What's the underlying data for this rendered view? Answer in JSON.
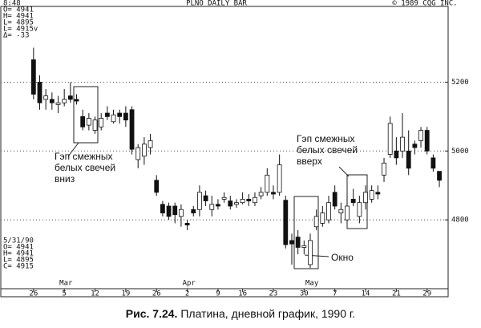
{
  "chart_data": {
    "type": "candlestick",
    "title": "PLNO DAILY BAR",
    "copyright": "© 1989 CQG INC.",
    "header_lines": [
      "8:48",
      "O= 4941",
      "H= 4941",
      "L= 4895",
      "L= 4915v",
      "Δ= -33"
    ],
    "footer_lines": [
      "5/31/90",
      "O= 4941",
      "H= 4941",
      "L= 4895",
      "C= 4915"
    ],
    "categories": [
      "26",
      null,
      null,
      null,
      null,
      "5",
      null,
      null,
      null,
      null,
      "12",
      null,
      null,
      null,
      null,
      "19",
      null,
      null,
      null,
      null,
      "26",
      null,
      null,
      null,
      null,
      "2",
      null,
      null,
      null,
      null,
      "9",
      null,
      null,
      null,
      "16",
      null,
      null,
      null,
      null,
      "23",
      null,
      null,
      null,
      null,
      "30",
      null,
      null,
      null,
      null,
      "7",
      null,
      null,
      null,
      null,
      "14",
      null,
      null,
      null,
      null,
      "21",
      null,
      null,
      null,
      null,
      "29",
      null,
      null
    ],
    "months": [
      null,
      null,
      null,
      null,
      null,
      "Mar",
      null,
      null,
      null,
      null,
      null,
      null,
      null,
      null,
      null,
      null,
      null,
      null,
      null,
      null,
      null,
      null,
      null,
      null,
      null,
      "Apr",
      null,
      null,
      null,
      null,
      null,
      null,
      null,
      null,
      null,
      null,
      null,
      null,
      null,
      null,
      null,
      null,
      null,
      null,
      null,
      "May",
      null,
      null,
      null,
      null,
      null,
      null,
      null,
      null,
      null,
      null,
      null,
      null,
      null,
      null,
      null,
      null,
      null,
      null,
      null,
      null,
      null
    ],
    "series": [
      {
        "color_up": "#ffffff",
        "color_down": "#111111",
        "open": [
          5265,
          5200,
          5150,
          5150,
          5135,
          5140,
          5160,
          5150,
          5100,
          5075,
          5060,
          5070,
          5110,
          5085,
          5110,
          5110,
          5120,
          4975,
          4985,
          5010,
          4915,
          4845,
          4840,
          4840,
          4810,
          4790,
          4830,
          4830,
          4870,
          4830,
          4845,
          4860,
          4855,
          4845,
          4850,
          4860,
          4850,
          4870,
          4880,
          4880,
          4880,
          4857,
          4740,
          4750,
          4720,
          4670,
          4780,
          4790,
          4800,
          4880,
          4820,
          4800,
          4860,
          4810,
          4850,
          4860,
          4880,
          4930,
          4990,
          5000,
          5000,
          5000,
          5020,
          5030,
          5060,
          4980,
          4941
        ],
        "high": [
          5300,
          5220,
          5180,
          5170,
          5160,
          5180,
          5200,
          5165,
          5120,
          5110,
          5100,
          5110,
          5130,
          5120,
          5120,
          5130,
          5130,
          5020,
          5040,
          5050,
          4930,
          4855,
          4850,
          4850,
          4845,
          4800,
          4840,
          4900,
          4885,
          4870,
          4860,
          4880,
          4870,
          4860,
          4880,
          4875,
          4880,
          4895,
          4950,
          4900,
          4990,
          4870,
          4760,
          4770,
          4740,
          4760,
          4830,
          4840,
          4870,
          4900,
          4850,
          4870,
          4890,
          4870,
          4900,
          4900,
          4900,
          4980,
          5100,
          5040,
          5110,
          5060,
          5030,
          5070,
          5070,
          4990,
          4941
        ],
        "low": [
          5150,
          5120,
          5120,
          5120,
          5110,
          5130,
          5140,
          5135,
          5060,
          5060,
          5050,
          5060,
          5090,
          5080,
          5080,
          5070,
          4990,
          4950,
          4960,
          4990,
          4870,
          4810,
          4800,
          4790,
          4780,
          4770,
          4810,
          4810,
          4840,
          4810,
          4830,
          4850,
          4830,
          4835,
          4845,
          4840,
          4840,
          4860,
          4870,
          4860,
          4870,
          4717,
          4670,
          4700,
          4700,
          4660,
          4770,
          4780,
          4790,
          4830,
          4790,
          4790,
          4840,
          4790,
          4830,
          4850,
          4860,
          4910,
          4980,
          4960,
          4980,
          4930,
          4990,
          5010,
          4990,
          4940,
          4895
        ],
        "close": [
          5165,
          5140,
          5160,
          5140,
          5140,
          5150,
          5150,
          5145,
          5070,
          5095,
          5090,
          5095,
          5100,
          5105,
          5100,
          5090,
          5005,
          5010,
          5020,
          5030,
          4880,
          4820,
          4810,
          4815,
          4830,
          4785,
          4820,
          4880,
          4855,
          4845,
          4840,
          4865,
          4840,
          4850,
          4860,
          4855,
          4865,
          4880,
          4930,
          4875,
          4960,
          4728,
          4730,
          4720,
          4725,
          4740,
          4810,
          4820,
          4850,
          4840,
          4830,
          4840,
          4850,
          4850,
          4880,
          4885,
          4875,
          4965,
          5080,
          4980,
          5040,
          4950,
          5010,
          5060,
          5000,
          4950,
          4915
        ]
      }
    ],
    "ylim": [
      4600,
      5420
    ],
    "yticks": [
      4800,
      5000,
      5200
    ],
    "grid": true,
    "annotations": [
      [
        "Гэп смежных",
        "белых свечей",
        "вниз"
      ],
      [
        "Гэп смежных",
        "белых свечей",
        "вверх"
      ],
      [
        "Окно"
      ]
    ],
    "caption_label": "Рис. 7.24.",
    "caption_text": "Платина, дневной график, 1990 г."
  }
}
